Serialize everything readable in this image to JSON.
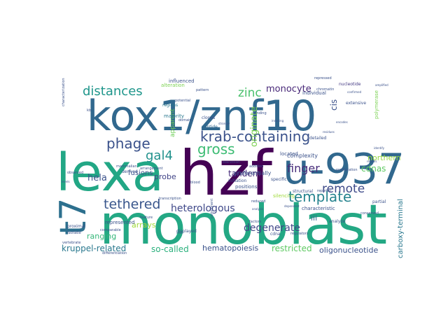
{
  "words": [
    {
      "text": "monoblast",
      "color": "#23a884"
    },
    {
      "text": "hzf",
      "color": "#440154"
    },
    {
      "text": "kox1/znf10",
      "color": "#31688e"
    },
    {
      "text": "lexa",
      "color": "#22a785"
    },
    {
      "text": "u-937",
      "color": "#31688e"
    },
    {
      "text": "t7",
      "color": "#2d708e"
    },
    {
      "text": "krab-containing",
      "color": "#3b528b"
    },
    {
      "text": "phage",
      "color": "#3b528b"
    },
    {
      "text": "distances",
      "color": "#1f968b"
    },
    {
      "text": "gross",
      "color": "#3dbc74"
    },
    {
      "text": "gal4",
      "color": "#21918c"
    },
    {
      "text": "zinc",
      "color": "#4ac16d"
    },
    {
      "text": "template",
      "color": "#25838e"
    },
    {
      "text": "remote",
      "color": "#3e4a89"
    },
    {
      "text": "tethered",
      "color": "#39568c"
    },
    {
      "text": "finger",
      "color": "#472c7a"
    },
    {
      "text": "heterologous",
      "color": "#3f4889"
    },
    {
      "text": "degenerate",
      "color": "#404688"
    },
    {
      "text": "monocyte",
      "color": "#482878"
    },
    {
      "text": "originate",
      "color": "#7ad151"
    },
    {
      "text": "cis",
      "color": "#3b528b"
    },
    {
      "text": "cdnas",
      "color": "#5ec962"
    },
    {
      "text": "northern",
      "color": "#95d840"
    },
    {
      "text": "hela",
      "color": "#3b528b"
    },
    {
      "text": "fusions",
      "color": "#3b528b"
    },
    {
      "text": "probe",
      "color": "#414487"
    },
    {
      "text": "tandem",
      "color": "#472c7a"
    },
    {
      "text": "iii",
      "color": "#31688e"
    },
    {
      "text": "arrays",
      "color": "#a0da39"
    },
    {
      "text": "ranging",
      "color": "#35b779"
    },
    {
      "text": "kruppel-related",
      "color": "#2a788e"
    },
    {
      "text": "so-called",
      "color": "#2cb17e"
    },
    {
      "text": "hematopoiesis",
      "color": "#3b528b"
    },
    {
      "text": "restricted",
      "color": "#5ec962"
    },
    {
      "text": "oligonucleotide",
      "color": "#3b528b"
    },
    {
      "text": "carboxy-terminal",
      "color": "#2a788e"
    },
    {
      "text": "apparent",
      "color": "#6ece58"
    },
    {
      "text": "influenced",
      "color": "#3b528b"
    },
    {
      "text": "nucleotide",
      "color": "#443983"
    },
    {
      "text": "alteration",
      "color": "#7ad151"
    },
    {
      "text": "individual",
      "color": "#3b528b"
    },
    {
      "text": "regions",
      "color": "#2a788e"
    },
    {
      "text": "majority",
      "color": "#2a788e"
    },
    {
      "text": "peptide",
      "color": "#31688e"
    },
    {
      "text": "derived",
      "color": "#3b528b"
    },
    {
      "text": "domain",
      "color": "#3b528b"
    },
    {
      "text": "preferentially",
      "color": "#3b528b"
    },
    {
      "text": "complexity",
      "color": "#3b528b"
    },
    {
      "text": "initiation",
      "color": "#3b528b"
    },
    {
      "text": "positions",
      "color": "#3b528b"
    },
    {
      "text": "specific",
      "color": "#3b528b"
    },
    {
      "text": "partial",
      "color": "#3b528b"
    },
    {
      "text": "characteristic",
      "color": "#3b528b"
    },
    {
      "text": "analyze",
      "color": "#3b528b"
    },
    {
      "text": "represented",
      "color": "#3b528b"
    },
    {
      "text": "displayed",
      "color": "#3b528b"
    },
    {
      "text": "proximal",
      "color": "#3b528b"
    },
    {
      "text": "isolate",
      "color": "#3b528b"
    },
    {
      "text": "vertebrate",
      "color": "#3b528b"
    },
    {
      "text": "cdna",
      "color": "#3b528b"
    },
    {
      "text": "polymerase",
      "color": "#7ad151"
    },
    {
      "text": "extensive",
      "color": "#3b528b"
    },
    {
      "text": "detailed",
      "color": "#3b528b"
    },
    {
      "text": "located",
      "color": "#3b528b"
    },
    {
      "text": "silencing",
      "color": "#9fda3a"
    },
    {
      "text": "structural",
      "color": "#3b528b"
    },
    {
      "text": "clones",
      "color": "#3b528b"
    },
    {
      "text": "feature",
      "color": "#3b528b"
    },
    {
      "text": "blood",
      "color": "#3b528b"
    },
    {
      "text": "regulators",
      "color": "#3b528b"
    },
    {
      "text": "chromatin",
      "color": "#3b528b"
    },
    {
      "text": "binding",
      "color": "#3b528b"
    },
    {
      "text": "component",
      "color": "#3b528b"
    },
    {
      "text": "repressed",
      "color": "#3b528b"
    },
    {
      "text": "cells",
      "color": "#3b528b"
    },
    {
      "text": "levels",
      "color": "#3b528b"
    },
    {
      "text": "mammalian",
      "color": "#3b528b"
    },
    {
      "text": "observed",
      "color": "#3b528b"
    },
    {
      "text": "transcription",
      "color": "#3b528b"
    },
    {
      "text": "pattern",
      "color": "#3b528b"
    },
    {
      "text": "arrangement",
      "color": "#3b528b"
    },
    {
      "text": "potential",
      "color": "#3b528b"
    },
    {
      "text": "kb",
      "color": "#3b528b"
    },
    {
      "text": "factors",
      "color": "#3b528b"
    },
    {
      "text": "reduced",
      "color": "#3b528b"
    },
    {
      "text": "conserved",
      "color": "#3b528b"
    },
    {
      "text": "differentiation",
      "color": "#3b528b"
    },
    {
      "text": "comparable",
      "color": "#3b528b"
    },
    {
      "text": "characterization",
      "color": "#3b528b"
    },
    {
      "text": "addition",
      "color": "#3b528b"
    },
    {
      "text": "proliferation",
      "color": "#3b528b"
    },
    {
      "text": "reporter",
      "color": "#3b528b"
    },
    {
      "text": "amplified",
      "color": "#3b528b"
    },
    {
      "text": "reveals",
      "color": "#3b528b"
    },
    {
      "text": "residues",
      "color": "#3b528b"
    },
    {
      "text": "confirmed",
      "color": "#3b528b"
    },
    {
      "text": "inducing",
      "color": "#3b528b"
    },
    {
      "text": "downstream",
      "color": "#3b528b"
    },
    {
      "text": "strongly",
      "color": "#3b528b"
    },
    {
      "text": "dependent",
      "color": "#3b528b"
    },
    {
      "text": "encodes",
      "color": "#3b528b"
    },
    {
      "text": "identify",
      "color": "#3b528b"
    },
    {
      "text": "analysis",
      "color": "#3b528b"
    }
  ]
}
